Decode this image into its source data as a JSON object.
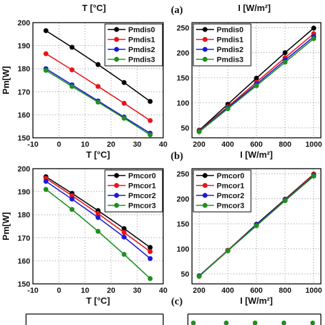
{
  "top_axis_labels": [
    "T [°C]",
    "I [W/m²]"
  ],
  "panel_labels": [
    "(a)",
    "(b)",
    "(c)"
  ],
  "colors": [
    "#000000",
    "#e8141a",
    "#1a1ad8",
    "#1f8f1f"
  ],
  "chart_data": [
    {
      "type": "line",
      "xlabel": "T [°C]",
      "ylabel": "Pm[W]",
      "xlim": [
        -10,
        40
      ],
      "ylim": [
        150,
        200
      ],
      "xticks": [
        -10,
        0,
        10,
        20,
        30,
        40
      ],
      "yticks": [
        150,
        160,
        170,
        180,
        190,
        200
      ],
      "legend": "top-right",
      "x": [
        -5,
        5,
        15,
        25,
        35
      ],
      "series": [
        {
          "name": "Pmdis0",
          "values": [
            196.5,
            189.3,
            181.8,
            174.0,
            165.8
          ]
        },
        {
          "name": "Pmdis1",
          "values": [
            186.5,
            179.5,
            172.3,
            165.0,
            157.5
          ]
        },
        {
          "name": "Pmdis2",
          "values": [
            180.0,
            173.0,
            166.0,
            159.0,
            152.0
          ]
        },
        {
          "name": "Pmdis3",
          "values": [
            179.3,
            172.3,
            165.5,
            158.5,
            151.3
          ]
        }
      ]
    },
    {
      "type": "line",
      "xlabel": "I [W/m²]",
      "ylabel": "",
      "xlim": [
        150,
        1050
      ],
      "ylim": [
        30,
        260
      ],
      "xticks": [
        200,
        400,
        600,
        800,
        1000
      ],
      "yticks": [
        50,
        100,
        150,
        200,
        250
      ],
      "legend": "top-left",
      "x": [
        200,
        400,
        600,
        800,
        1000
      ],
      "series": [
        {
          "name": "Pmdis0",
          "values": [
            45,
            97,
            149,
            200,
            249
          ]
        },
        {
          "name": "Pmdis1",
          "values": [
            44,
            92,
            141,
            190,
            238
          ]
        },
        {
          "name": "Pmdis2",
          "values": [
            43,
            90,
            137,
            185,
            232
          ]
        },
        {
          "name": "Pmdis3",
          "values": [
            42,
            88,
            134,
            181,
            228
          ]
        }
      ]
    },
    {
      "type": "line",
      "xlabel": "T [°C]",
      "ylabel": "Pm[W]",
      "xlim": [
        -10,
        40
      ],
      "ylim": [
        150,
        200
      ],
      "xticks": [
        -10,
        0,
        10,
        20,
        30,
        40
      ],
      "yticks": [
        150,
        160,
        170,
        180,
        190,
        200
      ],
      "legend": "top-right",
      "x": [
        -5,
        5,
        15,
        25,
        35
      ],
      "series": [
        {
          "name": "Pmcor0",
          "values": [
            196.5,
            189.3,
            181.8,
            174.0,
            165.8
          ]
        },
        {
          "name": "Pmcor1",
          "values": [
            195.8,
            188.3,
            180.5,
            172.3,
            164.0
          ]
        },
        {
          "name": "Pmcor2",
          "values": [
            194.5,
            186.8,
            178.8,
            170.3,
            161.0
          ]
        },
        {
          "name": "Pmcor3",
          "values": [
            191.0,
            182.3,
            172.8,
            162.8,
            152.3
          ]
        }
      ]
    },
    {
      "type": "line",
      "xlabel": "I [W/m²]",
      "ylabel": "",
      "xlim": [
        150,
        1050
      ],
      "ylim": [
        30,
        260
      ],
      "xticks": [
        200,
        400,
        600,
        800,
        1000
      ],
      "yticks": [
        50,
        100,
        150,
        200,
        250
      ],
      "legend": "top-left",
      "x": [
        200,
        400,
        600,
        800,
        1000
      ],
      "series": [
        {
          "name": "Pmcor0",
          "values": [
            46,
            97,
            149,
            199,
            249
          ]
        },
        {
          "name": "Pmcor1",
          "values": [
            46,
            97,
            148,
            198,
            248
          ]
        },
        {
          "name": "Pmcor2",
          "values": [
            46,
            96,
            148,
            197,
            246
          ]
        },
        {
          "name": "Pmcor3",
          "values": [
            45,
            96,
            146,
            196,
            245
          ]
        }
      ]
    }
  ]
}
